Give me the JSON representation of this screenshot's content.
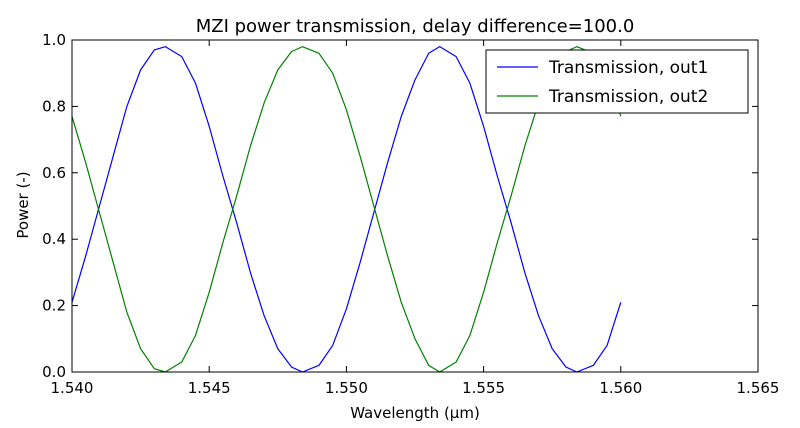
{
  "chart_data": {
    "type": "line",
    "title": "MZI power transmission, delay difference=100.0",
    "xlabel": "Wavelength (μm)",
    "ylabel": "Power (-)",
    "xlim": [
      1.54,
      1.565
    ],
    "ylim": [
      0.0,
      1.0
    ],
    "xticks": [
      "1.540",
      "1.545",
      "1.550",
      "1.555",
      "1.560",
      "1.565"
    ],
    "yticks": [
      "0.0",
      "0.2",
      "0.4",
      "0.6",
      "0.8",
      "1.0"
    ],
    "grid": false,
    "legend_position": "top-right",
    "x": [
      1.54,
      1.5405,
      1.541,
      1.5415,
      1.542,
      1.5425,
      1.543,
      1.5434,
      1.544,
      1.5445,
      1.545,
      1.5455,
      1.546,
      1.5465,
      1.547,
      1.5475,
      1.548,
      1.5484,
      1.549,
      1.5495,
      1.55,
      1.5505,
      1.551,
      1.5515,
      1.552,
      1.5525,
      1.553,
      1.5534,
      1.554,
      1.5545,
      1.555,
      1.5555,
      1.556,
      1.5565,
      1.557,
      1.5575,
      1.558,
      1.5584,
      1.559,
      1.5595,
      1.56
    ],
    "series": [
      {
        "name": "Transmission, out1",
        "color": "#0000ff",
        "values": [
          0.21,
          0.35,
          0.5,
          0.65,
          0.8,
          0.91,
          0.97,
          0.98,
          0.95,
          0.87,
          0.74,
          0.59,
          0.45,
          0.3,
          0.17,
          0.07,
          0.015,
          0.0,
          0.02,
          0.08,
          0.19,
          0.33,
          0.48,
          0.63,
          0.77,
          0.88,
          0.96,
          0.98,
          0.95,
          0.87,
          0.74,
          0.59,
          0.45,
          0.3,
          0.17,
          0.07,
          0.015,
          0.0,
          0.02,
          0.08,
          0.21
        ]
      },
      {
        "name": "Transmission, out2",
        "color": "#008000",
        "values": [
          0.77,
          0.63,
          0.48,
          0.33,
          0.18,
          0.07,
          0.01,
          0.0,
          0.03,
          0.11,
          0.24,
          0.39,
          0.53,
          0.68,
          0.81,
          0.91,
          0.965,
          0.98,
          0.96,
          0.9,
          0.79,
          0.65,
          0.5,
          0.35,
          0.21,
          0.1,
          0.02,
          0.0,
          0.03,
          0.11,
          0.24,
          0.39,
          0.53,
          0.68,
          0.81,
          0.91,
          0.965,
          0.98,
          0.96,
          0.9,
          0.77
        ]
      }
    ]
  }
}
